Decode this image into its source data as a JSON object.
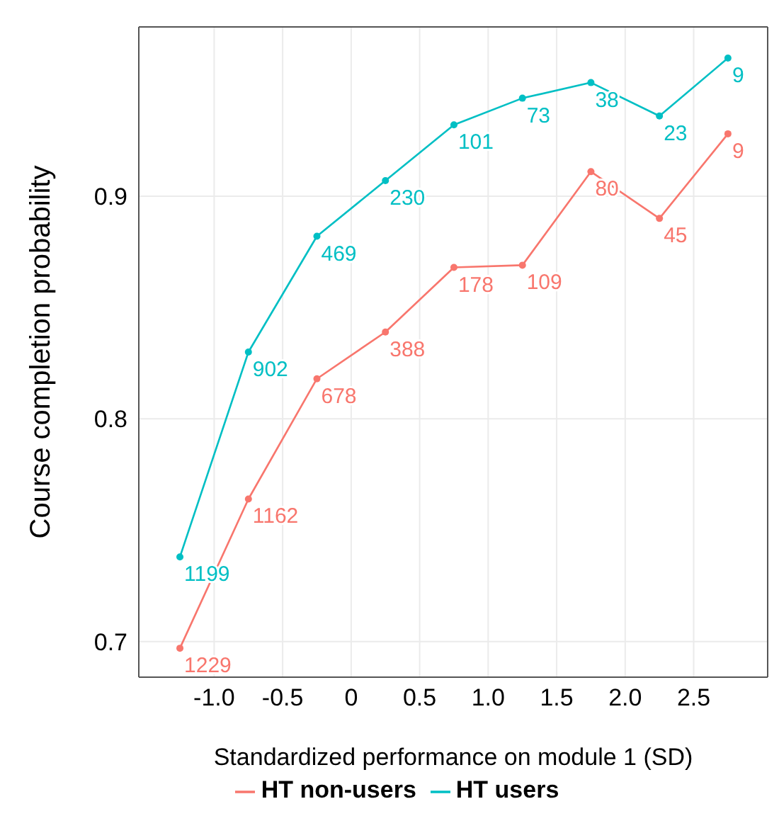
{
  "chart_data": {
    "type": "line",
    "xlabel": "Standardized performance on module 1 (SD)",
    "ylabel": "Course completion probability",
    "x": [
      -1.25,
      -0.75,
      -0.25,
      0.25,
      0.75,
      1.25,
      1.75,
      2.25,
      2.75
    ],
    "series": [
      {
        "name": "HT non-users",
        "color": "#f8766d",
        "values": [
          0.697,
          0.764,
          0.818,
          0.839,
          0.868,
          0.869,
          0.911,
          0.89,
          0.928
        ]
      },
      {
        "name": "HT users",
        "color": "#00bfc4",
        "values": [
          0.738,
          0.83,
          0.882,
          0.907,
          0.932,
          0.944,
          0.951,
          0.936,
          0.962
        ]
      }
    ],
    "annotations": [
      {
        "text": "1229",
        "x": -1.25,
        "y": 0.697
      },
      {
        "text": "1162",
        "x": -0.75,
        "y": 0.764
      },
      {
        "text": "678",
        "x": -0.25,
        "y": 0.818
      },
      {
        "text": "388",
        "x": 0.25,
        "y": 0.839
      },
      {
        "text": "178",
        "x": 0.75,
        "y": 0.868
      },
      {
        "text": "109",
        "x": 1.25,
        "y": 0.869
      },
      {
        "text": "80",
        "x": 1.75,
        "y": 0.911
      },
      {
        "text": "45",
        "x": 2.25,
        "y": 0.89
      },
      {
        "text": "9",
        "x": 2.75,
        "y": 0.928
      },
      {
        "text": "1199",
        "x": -1.25,
        "y": 0.738
      },
      {
        "text": "902",
        "x": -0.75,
        "y": 0.83
      },
      {
        "text": "469",
        "x": -0.25,
        "y": 0.882
      },
      {
        "text": "230",
        "x": 0.25,
        "y": 0.907
      },
      {
        "text": "101",
        "x": 0.75,
        "y": 0.932
      },
      {
        "text": "73",
        "x": 1.25,
        "y": 0.944
      },
      {
        "text": "38",
        "x": 1.75,
        "y": 0.951
      },
      {
        "text": "23",
        "x": 2.25,
        "y": 0.936
      },
      {
        "text": "9",
        "x": 2.75,
        "y": 0.962
      }
    ],
    "xlim": [
      -1.55,
      3.04
    ],
    "xticks": [
      {
        "value": -1.0,
        "label": "-1.0"
      },
      -0.5,
      0,
      0.5,
      {
        "value": 1.0,
        "label": "1.0"
      },
      1.5,
      {
        "value": 2.0,
        "label": "2.0"
      },
      2.5
    ],
    "ylim": [
      0.684,
      0.976
    ],
    "yticks": [
      0.7,
      0.8,
      0.9
    ],
    "grid": true,
    "legend": "bottom",
    "marker": "circle",
    "line_style": "solid"
  }
}
